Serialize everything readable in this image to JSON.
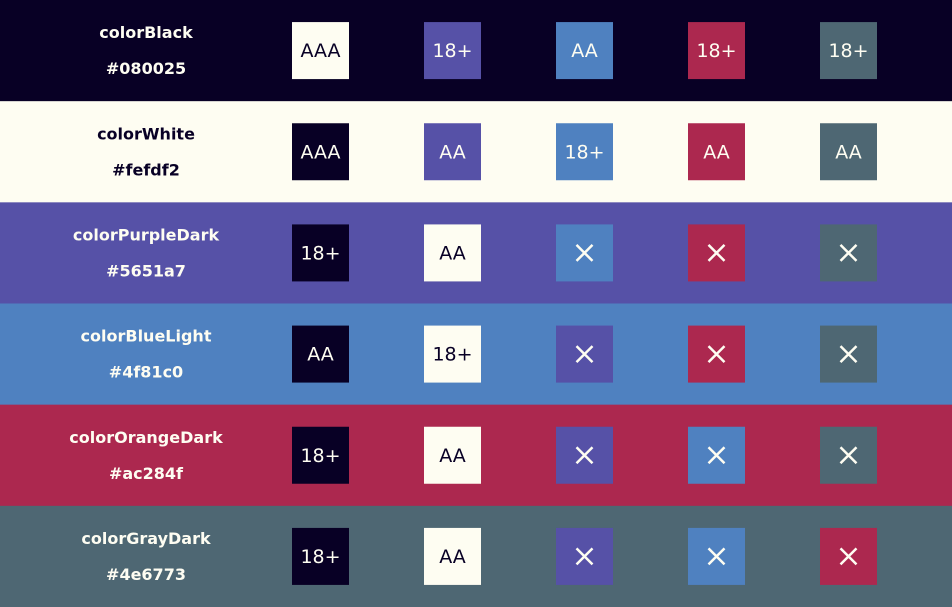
{
  "rows": [
    {
      "name": "colorBlack",
      "hex": "#080025",
      "color": "#080025",
      "text_color": "#fefdf2",
      "cells": [
        {
          "color": "#fefdf2",
          "label": "AAA"
        },
        {
          "color": "#5651a7",
          "label": "18+"
        },
        {
          "color": "#4f81c0",
          "label": "AA"
        },
        {
          "color": "#ac284f",
          "label": "18+"
        },
        {
          "color": "#4e6773",
          "label": "18+"
        }
      ]
    },
    {
      "name": "colorWhite",
      "hex": "#fefdf2",
      "color": "#fefdf2",
      "text_color": "#080025",
      "cells": [
        {
          "color": "#080025",
          "label": "AAA"
        },
        {
          "color": "#5651a7",
          "label": "AA"
        },
        {
          "color": "#4f81c0",
          "label": "18+"
        },
        {
          "color": "#ac284f",
          "label": "AA"
        },
        {
          "color": "#4e6773",
          "label": "AA"
        }
      ]
    },
    {
      "name": "colorPurpleDark",
      "hex": "#5651a7",
      "color": "#5651a7",
      "text_color": "#fefdf2",
      "cells": [
        {
          "color": "#080025",
          "label": "18+"
        },
        {
          "color": "#fefdf2",
          "label": "AA"
        },
        {
          "color": "#4f81c0"
        },
        {
          "color": "#ac284f"
        },
        {
          "color": "#4e6773"
        }
      ]
    },
    {
      "name": "colorBlueLight",
      "hex": "#4f81c0",
      "color": "#4f81c0",
      "text_color": "#fefdf2",
      "cells": [
        {
          "color": "#080025",
          "label": "AA"
        },
        {
          "color": "#fefdf2",
          "label": "18+"
        },
        {
          "color": "#5651a7"
        },
        {
          "color": "#ac284f"
        },
        {
          "color": "#4e6773"
        }
      ]
    },
    {
      "name": "colorOrangeDark",
      "hex": "#ac284f",
      "color": "#ac284f",
      "text_color": "#fefdf2",
      "cells": [
        {
          "color": "#080025",
          "label": "18+"
        },
        {
          "color": "#fefdf2",
          "label": "AA"
        },
        {
          "color": "#5651a7"
        },
        {
          "color": "#4f81c0"
        },
        {
          "color": "#4e6773"
        }
      ]
    },
    {
      "name": "colorGrayDark",
      "hex": "#4e6773",
      "color": "#4e6773",
      "text_color": "#fefdf2",
      "cells": [
        {
          "color": "#080025",
          "label": "18+"
        },
        {
          "color": "#fefdf2",
          "label": "AA"
        },
        {
          "color": "#5651a7"
        },
        {
          "color": "#4f81c0"
        },
        {
          "color": "#ac284f"
        }
      ]
    }
  ]
}
